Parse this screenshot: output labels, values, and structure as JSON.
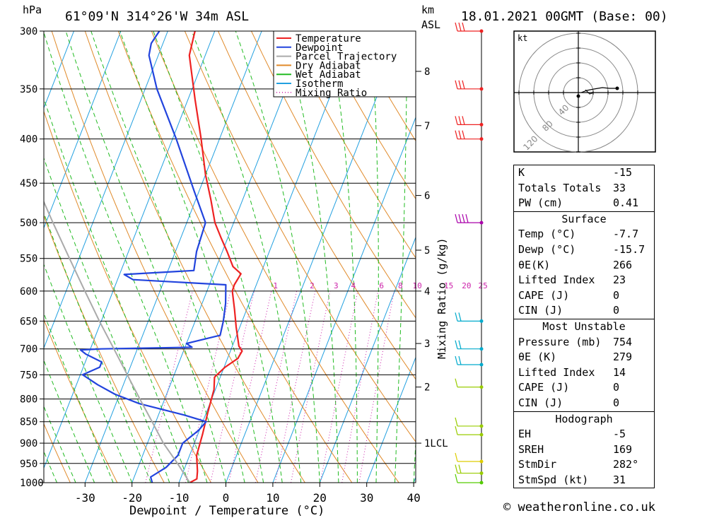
{
  "header": {
    "pressure_unit": "hPa",
    "location": "61°09'N 314°26'W 34m ASL",
    "km_unit": "km",
    "km_asl": "ASL",
    "datetime": "18.01.2021 00GMT (Base: 00)"
  },
  "chart_data": {
    "type": "skew-t log-p",
    "title": "61°09'N 314°26'W 34m ASL",
    "xlabel": "Dewpoint / Temperature (°C)",
    "ylabel": "hPa",
    "right_label": "Mixing Ratio (g/kg)",
    "x_ticks": [
      -30,
      -20,
      -10,
      0,
      10,
      20,
      30,
      40
    ],
    "x_tick_labels": [
      "-30",
      "-20",
      "-10",
      "0",
      "10",
      "20",
      "30",
      "40"
    ],
    "pressure_levels": [
      300,
      350,
      400,
      450,
      500,
      550,
      600,
      650,
      700,
      750,
      800,
      850,
      900,
      950,
      1000
    ],
    "pressure_labels": [
      "300",
      "350",
      "400",
      "450",
      "500",
      "550",
      "600",
      "650",
      "700",
      "750",
      "800",
      "850",
      "900",
      "950",
      "1000"
    ],
    "km_levels": [
      {
        "km": 8,
        "p": 334,
        "label": "8"
      },
      {
        "km": 7,
        "p": 386,
        "label": "7"
      },
      {
        "km": 6,
        "p": 465,
        "label": "6"
      },
      {
        "km": 5,
        "p": 538,
        "label": "5"
      },
      {
        "km": 4,
        "p": 600,
        "label": "4"
      },
      {
        "km": 3,
        "p": 690,
        "label": "3"
      },
      {
        "km": 2,
        "p": 775,
        "label": "2"
      },
      {
        "km": 1,
        "p": 900,
        "label": "1LCL"
      }
    ],
    "mixing_ratio_labels": [
      "1",
      "2",
      "3",
      "4",
      "6",
      "8",
      "10",
      "15",
      "20",
      "25"
    ],
    "mixing_ratio_label_x": [
      -5.4,
      2.4,
      7.5,
      11.2,
      17.2,
      21.2,
      24.8,
      31.5,
      35.3,
      38.8
    ],
    "legend": [
      "Temperature",
      "Dewpoint",
      "Parcel Trajectory",
      "Dry Adiabat",
      "Wet Adiabat",
      "Isotherm",
      "Mixing Ratio"
    ],
    "series": [
      {
        "name": "Temperature",
        "color": "#ee2222",
        "points": [
          [
            1000,
            -7.7
          ],
          [
            990,
            -6.5
          ],
          [
            970,
            -7.0
          ],
          [
            930,
            -8.5
          ],
          [
            880,
            -9.0
          ],
          [
            830,
            -9.7
          ],
          [
            780,
            -10.3
          ],
          [
            755,
            -11.2
          ],
          [
            735,
            -9.8
          ],
          [
            718,
            -7.8
          ],
          [
            704,
            -7.5
          ],
          [
            695,
            -8.6
          ],
          [
            660,
            -10.8
          ],
          [
            630,
            -12.6
          ],
          [
            600,
            -14.6
          ],
          [
            590,
            -14.7
          ],
          [
            573,
            -14.2
          ],
          [
            562,
            -16.5
          ],
          [
            540,
            -19.0
          ],
          [
            520,
            -21.5
          ],
          [
            500,
            -24.0
          ],
          [
            470,
            -26.8
          ],
          [
            440,
            -30.0
          ],
          [
            400,
            -33.9
          ],
          [
            360,
            -38.5
          ],
          [
            320,
            -43.4
          ],
          [
            305,
            -44.0
          ],
          [
            300,
            -44.2
          ]
        ]
      },
      {
        "name": "Dewpoint",
        "color": "#2244dd",
        "points": [
          [
            1000,
            -15.7
          ],
          [
            985,
            -16.5
          ],
          [
            960,
            -14.0
          ],
          [
            930,
            -12.5
          ],
          [
            900,
            -12.5
          ],
          [
            870,
            -10.2
          ],
          [
            850,
            -9.3
          ],
          [
            835,
            -14.5
          ],
          [
            810,
            -25.0
          ],
          [
            790,
            -31.0
          ],
          [
            770,
            -35.5
          ],
          [
            750,
            -39.5
          ],
          [
            735,
            -36.5
          ],
          [
            725,
            -36.5
          ],
          [
            710,
            -40.5
          ],
          [
            702,
            -42.0
          ],
          [
            700,
            -37.7
          ],
          [
            697,
            -18.5
          ],
          [
            690,
            -20.0
          ],
          [
            675,
            -13.5
          ],
          [
            650,
            -14.0
          ],
          [
            620,
            -15.0
          ],
          [
            590,
            -16.5
          ],
          [
            582,
            -36.7
          ],
          [
            574,
            -39.0
          ],
          [
            568,
            -24.5
          ],
          [
            540,
            -25.5
          ],
          [
            500,
            -26.0
          ],
          [
            460,
            -31.0
          ],
          [
            400,
            -39.2
          ],
          [
            350,
            -47.5
          ],
          [
            320,
            -52.0
          ],
          [
            310,
            -52.5
          ],
          [
            300,
            -51.8
          ]
        ]
      },
      {
        "name": "Parcel Trajectory",
        "color": "#aaaaaa",
        "points": [
          [
            1000,
            -7.7
          ],
          [
            950,
            -11.9
          ],
          [
            900,
            -16.6
          ],
          [
            850,
            -20.8
          ],
          [
            800,
            -25.3
          ],
          [
            750,
            -30.0
          ],
          [
            700,
            -35.0
          ],
          [
            650,
            -40.4
          ],
          [
            600,
            -46.0
          ],
          [
            550,
            -52.0
          ],
          [
            500,
            -58.5
          ],
          [
            450,
            -65.5
          ],
          [
            400,
            -72.7
          ],
          [
            380,
            -75.7
          ]
        ]
      }
    ],
    "wind_barbs": [
      {
        "p": 300,
        "color": "#ee2222",
        "flags": 3
      },
      {
        "p": 350,
        "color": "#ee2222",
        "flags": 3
      },
      {
        "p": 385,
        "color": "#ee2222",
        "flags": 3
      },
      {
        "p": 400,
        "color": "#ee2222",
        "flags": 3
      },
      {
        "p": 500,
        "color": "#aa00aa",
        "flags": 4
      },
      {
        "p": 650,
        "color": "#00aacc",
        "flags": 2
      },
      {
        "p": 700,
        "color": "#00aacc",
        "flags": 2
      },
      {
        "p": 730,
        "color": "#00aacc",
        "flags": 2
      },
      {
        "p": 775,
        "color": "#99cc00",
        "flags": 1
      },
      {
        "p": 860,
        "color": "#99cc00",
        "flags": 1
      },
      {
        "p": 880,
        "color": "#99cc00",
        "flags": 1
      },
      {
        "p": 945,
        "color": "#ddcc00",
        "flags": 1
      },
      {
        "p": 975,
        "color": "#99cc00",
        "flags": 2
      },
      {
        "p": 1000,
        "color": "#55cc00",
        "flags": 1
      }
    ],
    "hodograph": {
      "unit": "kt",
      "ring_labels": [
        "40",
        "80",
        "120"
      ]
    }
  },
  "indices": {
    "k_label": "K",
    "k_value": "-15",
    "tt_label": "Totals Totals",
    "tt_value": "33",
    "pw_label": "PW (cm)",
    "pw_value": "0.41"
  },
  "surface": {
    "title": "Surface",
    "temp_label": "Temp (°C)",
    "temp_value": "-7.7",
    "dewp_label": "Dewp (°C)",
    "dewp_value": "-15.7",
    "theta_label": "θE(K)",
    "theta_value": "266",
    "li_label": "Lifted Index",
    "li_value": "23",
    "cape_label": "CAPE (J)",
    "cape_value": "0",
    "cin_label": "CIN (J)",
    "cin_value": "0"
  },
  "most_unstable": {
    "title": "Most Unstable",
    "pressure_label": "Pressure (mb)",
    "pressure_value": "754",
    "theta_label": "θE (K)",
    "theta_value": "279",
    "li_label": "Lifted Index",
    "li_value": "14",
    "cape_label": "CAPE (J)",
    "cape_value": "0",
    "cin_label": "CIN (J)",
    "cin_value": "0"
  },
  "hodograph_stats": {
    "title": "Hodograph",
    "eh_label": "EH",
    "eh_value": "-5",
    "sreh_label": "SREH",
    "sreh_value": "169",
    "stmdir_label": "StmDir",
    "stmdir_value": "282°",
    "stmspd_label": "StmSpd (kt)",
    "stmspd_value": "31"
  },
  "footer": {
    "credit": "© weatheronline.co.uk"
  },
  "colors": {
    "temperature": "#ee2222",
    "dewpoint": "#2244dd",
    "parcel": "#aaaaaa",
    "dry_adiabat": "#e08a2a",
    "wet_adiabat": "#22bb22",
    "isotherm": "#22a0e0",
    "mixing_ratio": "#cc22aa"
  }
}
